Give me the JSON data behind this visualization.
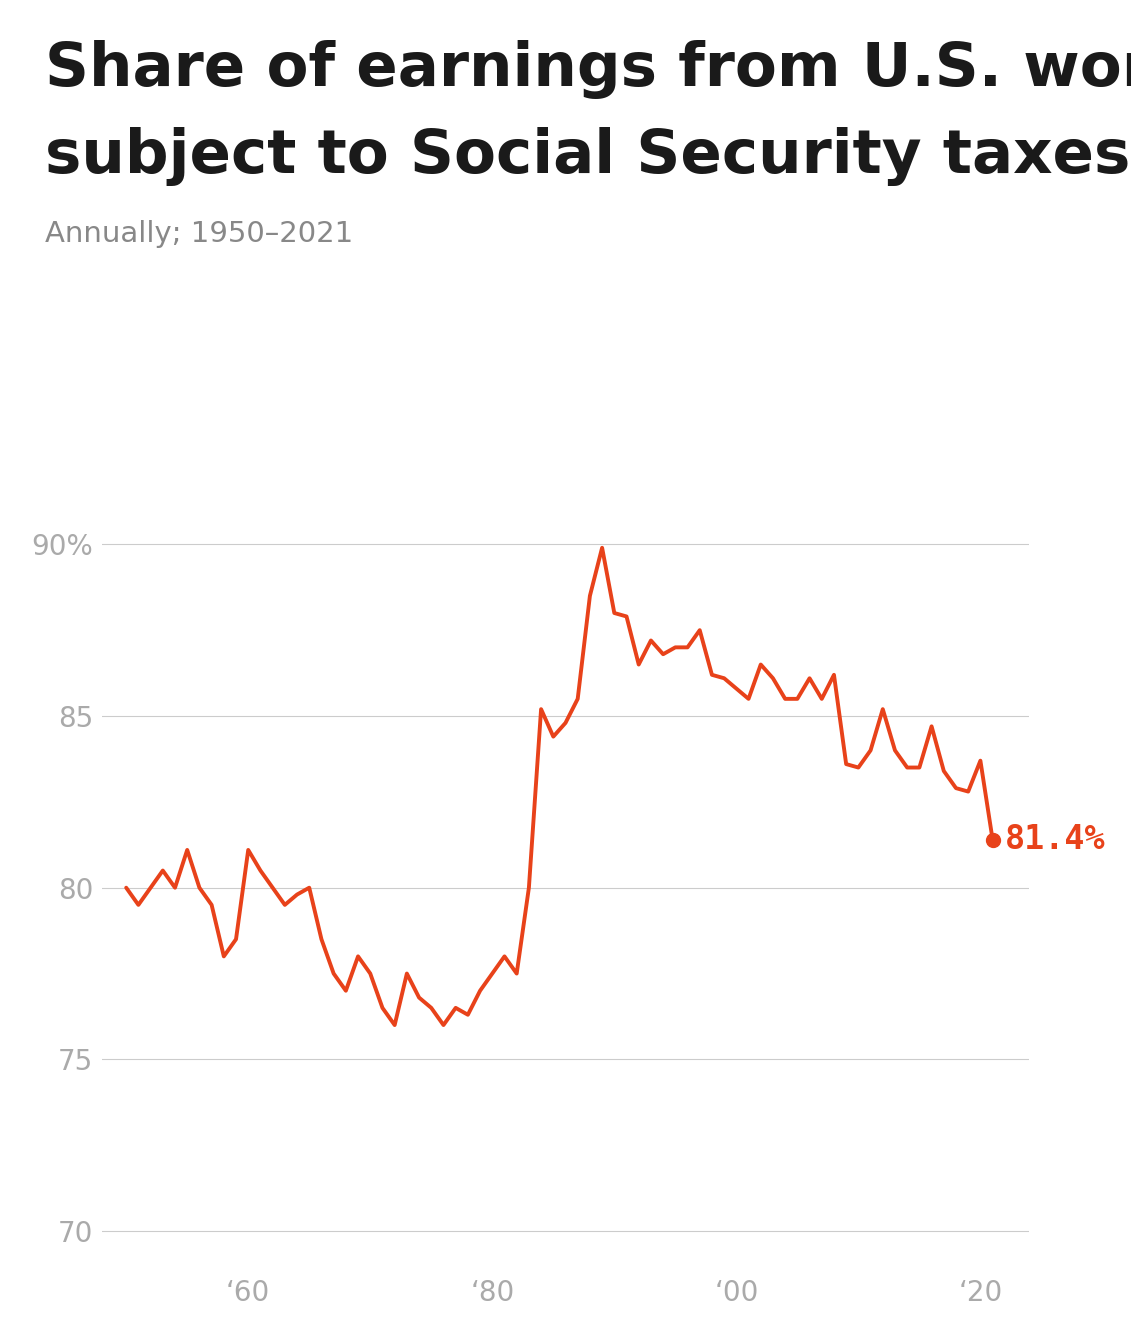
{
  "title_line1": "Share of earnings from U.S. workers",
  "title_line2": "subject to Social Security taxes",
  "subtitle": "Annually; 1950–2021",
  "line_color": "#E8421A",
  "dot_color": "#E8421A",
  "annotation": "81.4%",
  "background_color": "#ffffff",
  "title_color": "#1a1a1a",
  "subtitle_color": "#888888",
  "tick_color": "#aaaaaa",
  "grid_color": "#cccccc",
  "ylim": [
    69,
    91.5
  ],
  "yticks": [
    70,
    75,
    80,
    85,
    90
  ],
  "ytick_labels": [
    "70",
    "75",
    "80",
    "85",
    "90%"
  ],
  "xlim": [
    1948,
    2024
  ],
  "xtick_positions": [
    1960,
    1980,
    2000,
    2020
  ],
  "xtick_labels": [
    "‘60",
    "‘80",
    "‘00",
    "‘20"
  ],
  "years": [
    1950,
    1951,
    1952,
    1953,
    1954,
    1955,
    1956,
    1957,
    1958,
    1959,
    1960,
    1961,
    1962,
    1963,
    1964,
    1965,
    1966,
    1967,
    1968,
    1969,
    1970,
    1971,
    1972,
    1973,
    1974,
    1975,
    1976,
    1977,
    1978,
    1979,
    1980,
    1981,
    1982,
    1983,
    1984,
    1985,
    1986,
    1987,
    1988,
    1989,
    1990,
    1991,
    1992,
    1993,
    1994,
    1995,
    1996,
    1997,
    1998,
    1999,
    2000,
    2001,
    2002,
    2003,
    2004,
    2005,
    2006,
    2007,
    2008,
    2009,
    2010,
    2011,
    2012,
    2013,
    2014,
    2015,
    2016,
    2017,
    2018,
    2019,
    2020,
    2021
  ],
  "values": [
    80.0,
    79.5,
    80.0,
    80.5,
    80.0,
    81.1,
    80.0,
    79.5,
    78.0,
    78.5,
    81.1,
    80.5,
    80.0,
    79.5,
    79.8,
    80.0,
    78.5,
    77.5,
    77.0,
    78.0,
    77.5,
    76.5,
    76.0,
    77.5,
    76.8,
    76.5,
    76.0,
    76.5,
    76.3,
    77.0,
    77.5,
    78.0,
    77.5,
    80.0,
    85.2,
    84.4,
    84.8,
    85.5,
    88.5,
    89.9,
    88.0,
    87.9,
    86.5,
    87.2,
    86.8,
    87.0,
    87.0,
    87.5,
    86.2,
    86.1,
    85.8,
    85.5,
    86.5,
    86.1,
    85.5,
    85.5,
    86.1,
    85.5,
    86.2,
    83.6,
    83.5,
    84.0,
    85.2,
    84.0,
    83.5,
    83.5,
    84.7,
    83.4,
    82.9,
    82.8,
    83.7,
    81.4
  ]
}
